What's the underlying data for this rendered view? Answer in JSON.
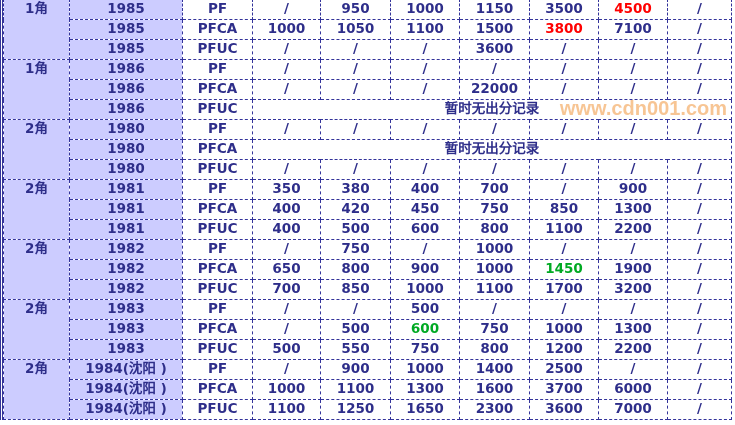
{
  "colors": {
    "text": "#2e2e8a",
    "highlight_red": "#ff0000",
    "highlight_green": "#00aa22",
    "label_bg": "#ccccff"
  },
  "watermark": "www.cdn001.com",
  "groups": [
    {
      "denomination": "1角",
      "rows": [
        {
          "year": "1985",
          "type": "PF",
          "values": [
            "/",
            "950",
            "1000",
            "1150",
            "3500",
            "4500",
            "/"
          ],
          "highlights": {
            "5": "red"
          }
        },
        {
          "year": "1985",
          "type": "PFCA",
          "values": [
            "1000",
            "1050",
            "1100",
            "1500",
            "3800",
            "7100",
            "/"
          ],
          "highlights": {
            "4": "red"
          }
        },
        {
          "year": "1985",
          "type": "PFUC",
          "values": [
            "/",
            "/",
            "/",
            "3600",
            "/",
            "/",
            "/"
          ]
        }
      ]
    },
    {
      "denomination": "1角",
      "rows": [
        {
          "year": "1986",
          "type": "PF",
          "values": [
            "/",
            "/",
            "/",
            "/",
            "/",
            "/",
            "/"
          ]
        },
        {
          "year": "1986",
          "type": "PFCA",
          "values": [
            "/",
            "/",
            "/",
            "22000",
            "/",
            "/",
            "/"
          ]
        },
        {
          "year": "1986",
          "type": "PFUC",
          "note": "暂时无出分记录"
        }
      ]
    },
    {
      "denomination": "2角",
      "rows": [
        {
          "year": "1980",
          "type": "PF",
          "values": [
            "/",
            "/",
            "/",
            "/",
            "/",
            "/",
            "/"
          ]
        },
        {
          "year": "1980",
          "type": "PFCA",
          "note": "暂时无出分记录"
        },
        {
          "year": "1980",
          "type": "PFUC",
          "values": [
            "/",
            "/",
            "/",
            "/",
            "/",
            "/",
            "/"
          ]
        }
      ]
    },
    {
      "denomination": "2角",
      "rows": [
        {
          "year": "1981",
          "type": "PF",
          "values": [
            "350",
            "380",
            "400",
            "700",
            "/",
            "900",
            "/"
          ]
        },
        {
          "year": "1981",
          "type": "PFCA",
          "values": [
            "400",
            "420",
            "450",
            "750",
            "850",
            "1300",
            "/"
          ]
        },
        {
          "year": "1981",
          "type": "PFUC",
          "values": [
            "400",
            "500",
            "600",
            "800",
            "1100",
            "2200",
            "/"
          ]
        }
      ]
    },
    {
      "denomination": "2角",
      "rows": [
        {
          "year": "1982",
          "type": "PF",
          "values": [
            "/",
            "750",
            "/",
            "1000",
            "/",
            "/",
            "/"
          ]
        },
        {
          "year": "1982",
          "type": "PFCA",
          "values": [
            "650",
            "800",
            "900",
            "1000",
            "1450",
            "1900",
            "/"
          ],
          "highlights": {
            "4": "green"
          }
        },
        {
          "year": "1982",
          "type": "PFUC",
          "values": [
            "700",
            "850",
            "1000",
            "1100",
            "1700",
            "3200",
            "/"
          ]
        }
      ]
    },
    {
      "denomination": "2角",
      "rows": [
        {
          "year": "1983",
          "type": "PF",
          "values": [
            "/",
            "/",
            "500",
            "/",
            "/",
            "/",
            "/"
          ]
        },
        {
          "year": "1983",
          "type": "PFCA",
          "values": [
            "/",
            "500",
            "600",
            "750",
            "1000",
            "1300",
            "/"
          ],
          "highlights": {
            "2": "green"
          }
        },
        {
          "year": "1983",
          "type": "PFUC",
          "values": [
            "500",
            "550",
            "750",
            "800",
            "1200",
            "2200",
            "/"
          ]
        }
      ]
    },
    {
      "denomination": "2角",
      "rows": [
        {
          "year": "1984(沈阳 )",
          "type": "PF",
          "values": [
            "/",
            "900",
            "1000",
            "1400",
            "2500",
            "/",
            "/"
          ]
        },
        {
          "year": "1984(沈阳 )",
          "type": "PFCA",
          "values": [
            "1000",
            "1100",
            "1300",
            "1600",
            "3700",
            "6000",
            "/"
          ]
        },
        {
          "year": "1984(沈阳 )",
          "type": "PFUC",
          "values": [
            "1100",
            "1250",
            "1650",
            "2300",
            "3600",
            "7000",
            "/"
          ]
        }
      ]
    }
  ]
}
